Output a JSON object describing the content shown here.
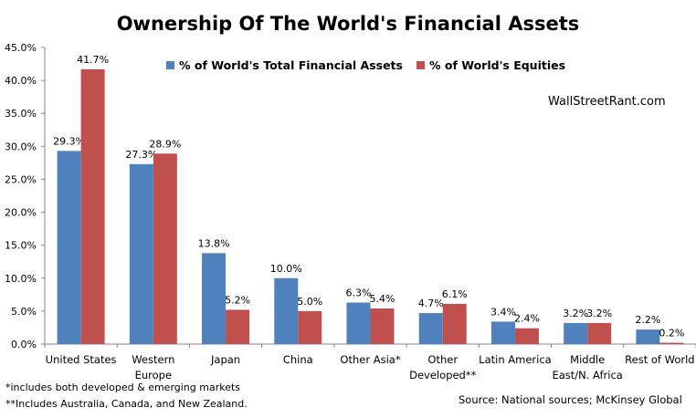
{
  "chart_data": {
    "type": "bar",
    "title": "Ownership Of The World's Financial Assets",
    "categories": [
      "United States",
      "Western Europe",
      "Japan",
      "China",
      "Other Asia*",
      "Other Developed**",
      "Latin America",
      "Middle East/N. Africa",
      "Rest of World"
    ],
    "category_lines": [
      [
        "United States"
      ],
      [
        "Western",
        "Europe"
      ],
      [
        "Japan"
      ],
      [
        "China"
      ],
      [
        "Other Asia*"
      ],
      [
        "Other",
        "Developed**"
      ],
      [
        "Latin America"
      ],
      [
        "Middle",
        "East/N. Africa"
      ],
      [
        "Rest of World"
      ]
    ],
    "series": [
      {
        "name": "% of World's Total Financial Assets",
        "color": "#4f81bd",
        "values": [
          29.3,
          27.3,
          13.8,
          10.0,
          6.3,
          4.7,
          3.4,
          3.2,
          2.2
        ],
        "labels": [
          "29.3%",
          "27.3%",
          "13.8%",
          "10.0%",
          "6.3%",
          "4.7%",
          "3.4%",
          "3.2%",
          "2.2%"
        ]
      },
      {
        "name": "% of World's Equities",
        "color": "#c0504d",
        "values": [
          41.7,
          28.9,
          5.2,
          5.0,
          5.4,
          6.1,
          2.4,
          3.2,
          0.2
        ],
        "labels": [
          "41.7%",
          "28.9%",
          "5.2%",
          "5.0%",
          "5.4%",
          "6.1%",
          "2.4%",
          "3.2%",
          "0.2%"
        ]
      }
    ],
    "ylim": [
      0,
      45
    ],
    "yticks": [
      0,
      5,
      10,
      15,
      20,
      25,
      30,
      35,
      40,
      45
    ],
    "ytick_labels": [
      "0.0%",
      "5.0%",
      "10.0%",
      "15.0%",
      "20.0%",
      "25.0%",
      "30.0%",
      "35.0%",
      "40.0%",
      "45.0%"
    ],
    "xlabel": "",
    "ylabel": "",
    "grid": false,
    "legend_position": "top-center"
  },
  "credit": "WallStreetRant.com",
  "notes": [
    "*includes both developed & emerging markets",
    "**Includes Australia, Canada, and New Zealand."
  ],
  "source": "Source: National sources; McKinsey Global"
}
